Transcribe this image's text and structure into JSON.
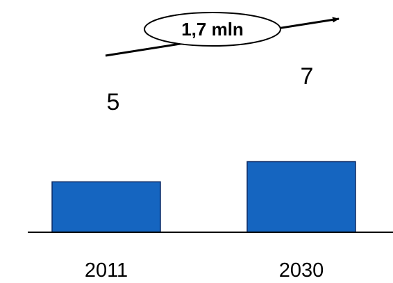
{
  "chart_data": {
    "type": "bar",
    "categories": [
      "2011",
      "2030"
    ],
    "values": [
      5,
      7
    ],
    "data_labels": [
      "5",
      "7"
    ],
    "annotation": "1,7 mln",
    "bar_color": "#1565C0",
    "bar_stroke": "#0A2A66",
    "grid": false,
    "legend": "none"
  }
}
